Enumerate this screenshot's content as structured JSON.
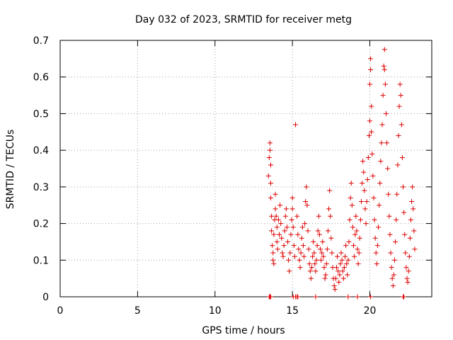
{
  "chart_data": {
    "type": "scatter",
    "title": "Day 032 of 2023, SRMTID for receiver metg",
    "xlabel": "GPS time / hours",
    "ylabel": "SRMTID / TECUs",
    "xlim": [
      0,
      24
    ],
    "ylim": [
      0,
      0.7
    ],
    "xticks": [
      0,
      5,
      10,
      15,
      20
    ],
    "yticks": [
      0,
      0.1,
      0.2,
      0.3,
      0.4,
      0.5,
      0.6,
      0.7
    ],
    "grid": true,
    "marker": "+",
    "color": "#dd0000",
    "series": [
      {
        "name": "SRMTID",
        "points": [
          [
            13.45,
            0.33
          ],
          [
            13.5,
            0.38
          ],
          [
            13.55,
            0.42
          ],
          [
            13.55,
            0.4
          ],
          [
            13.6,
            0.36
          ],
          [
            13.6,
            0.31
          ],
          [
            13.6,
            0.27
          ],
          [
            13.65,
            0.22
          ],
          [
            13.65,
            0.18
          ],
          [
            13.7,
            0.14
          ],
          [
            13.75,
            0.12
          ],
          [
            13.75,
            0.1
          ],
          [
            13.8,
            0.09
          ],
          [
            13.8,
            0.17
          ],
          [
            13.85,
            0.21
          ],
          [
            13.9,
            0.24
          ],
          [
            13.9,
            0.28
          ],
          [
            13.95,
            0.22
          ],
          [
            14.0,
            0.19
          ],
          [
            14.0,
            0.15
          ],
          [
            14.05,
            0.13
          ],
          [
            14.1,
            0.21
          ],
          [
            14.15,
            0.17
          ],
          [
            14.2,
            0.25
          ],
          [
            14.25,
            0.2
          ],
          [
            14.3,
            0.16
          ],
          [
            14.35,
            0.12
          ],
          [
            14.4,
            0.11
          ],
          [
            14.45,
            0.14
          ],
          [
            14.5,
            0.18
          ],
          [
            14.55,
            0.22
          ],
          [
            14.6,
            0.24
          ],
          [
            14.65,
            0.19
          ],
          [
            14.7,
            0.15
          ],
          [
            14.75,
            0.1
          ],
          [
            14.8,
            0.07
          ],
          [
            14.85,
            0.12
          ],
          [
            14.9,
            0.17
          ],
          [
            14.95,
            0.21
          ],
          [
            15.0,
            0.27
          ],
          [
            15.0,
            0.24
          ],
          [
            15.05,
            0.19
          ],
          [
            15.1,
            0.14
          ],
          [
            15.15,
            0.11
          ],
          [
            15.2,
            0.47
          ],
          [
            15.3,
            0.22
          ],
          [
            15.35,
            0.17
          ],
          [
            15.4,
            0.13
          ],
          [
            15.45,
            0.1
          ],
          [
            15.5,
            0.08
          ],
          [
            15.55,
            0.12
          ],
          [
            15.6,
            0.16
          ],
          [
            15.65,
            0.19
          ],
          [
            15.7,
            0.14
          ],
          [
            15.75,
            0.11
          ],
          [
            15.8,
            0.2
          ],
          [
            15.85,
            0.26
          ],
          [
            15.9,
            0.3
          ],
          [
            15.95,
            0.25
          ],
          [
            16.0,
            0.18
          ],
          [
            16.05,
            0.13
          ],
          [
            16.1,
            0.09
          ],
          [
            16.15,
            0.07
          ],
          [
            16.2,
            0.05
          ],
          [
            16.25,
            0.08
          ],
          [
            16.3,
            0.11
          ],
          [
            16.35,
            0.15
          ],
          [
            16.4,
            0.12
          ],
          [
            16.45,
            0.09
          ],
          [
            16.5,
            0.07
          ],
          [
            16.55,
            0.1
          ],
          [
            16.6,
            0.14
          ],
          [
            16.65,
            0.18
          ],
          [
            16.7,
            0.22
          ],
          [
            16.75,
            0.17
          ],
          [
            16.8,
            0.13
          ],
          [
            16.85,
            0.1
          ],
          [
            16.9,
            0.12
          ],
          [
            16.95,
            0.15
          ],
          [
            17.0,
            0.11
          ],
          [
            17.05,
            0.08
          ],
          [
            17.1,
            0.05
          ],
          [
            17.15,
            0.06
          ],
          [
            17.2,
            0.09
          ],
          [
            17.25,
            0.13
          ],
          [
            17.3,
            0.18
          ],
          [
            17.35,
            0.24
          ],
          [
            17.4,
            0.29
          ],
          [
            17.45,
            0.22
          ],
          [
            17.5,
            0.16
          ],
          [
            17.55,
            0.12
          ],
          [
            17.6,
            0.08
          ],
          [
            17.65,
            0.05
          ],
          [
            17.7,
            0.03
          ],
          [
            17.75,
            0.02
          ],
          [
            17.8,
            0.05
          ],
          [
            17.85,
            0.08
          ],
          [
            17.9,
            0.11
          ],
          [
            17.95,
            0.07
          ],
          [
            18.0,
            0.04
          ],
          [
            18.05,
            0.06
          ],
          [
            18.1,
            0.09
          ],
          [
            18.15,
            0.12
          ],
          [
            18.2,
            0.1
          ],
          [
            18.25,
            0.07
          ],
          [
            18.3,
            0.05
          ],
          [
            18.35,
            0.08
          ],
          [
            18.4,
            0.11
          ],
          [
            18.45,
            0.14
          ],
          [
            18.5,
            0.09
          ],
          [
            18.55,
            0.06
          ],
          [
            18.6,
            0.1
          ],
          [
            18.65,
            0.15
          ],
          [
            18.7,
            0.21
          ],
          [
            18.75,
            0.27
          ],
          [
            18.8,
            0.31
          ],
          [
            18.85,
            0.25
          ],
          [
            18.9,
            0.19
          ],
          [
            18.95,
            0.14
          ],
          [
            19.0,
            0.11
          ],
          [
            19.05,
            0.17
          ],
          [
            19.1,
            0.22
          ],
          [
            19.15,
            0.18
          ],
          [
            19.2,
            0.13
          ],
          [
            19.25,
            0.09
          ],
          [
            19.3,
            0.12
          ],
          [
            19.35,
            0.16
          ],
          [
            19.4,
            0.21
          ],
          [
            19.45,
            0.26
          ],
          [
            19.5,
            0.31
          ],
          [
            19.55,
            0.37
          ],
          [
            19.6,
            0.34
          ],
          [
            19.65,
            0.29
          ],
          [
            19.7,
            0.24
          ],
          [
            19.75,
            0.2
          ],
          [
            19.8,
            0.26
          ],
          [
            19.85,
            0.32
          ],
          [
            19.9,
            0.38
          ],
          [
            19.95,
            0.44
          ],
          [
            20.0,
            0.48
          ],
          [
            20.0,
            0.58
          ],
          [
            20.05,
            0.65
          ],
          [
            20.05,
            0.62
          ],
          [
            20.1,
            0.52
          ],
          [
            20.1,
            0.45
          ],
          [
            20.15,
            0.39
          ],
          [
            20.2,
            0.33
          ],
          [
            20.25,
            0.27
          ],
          [
            20.3,
            0.21
          ],
          [
            20.35,
            0.16
          ],
          [
            20.4,
            0.12
          ],
          [
            20.45,
            0.09
          ],
          [
            20.5,
            0.14
          ],
          [
            20.55,
            0.19
          ],
          [
            20.6,
            0.25
          ],
          [
            20.65,
            0.31
          ],
          [
            20.7,
            0.37
          ],
          [
            20.75,
            0.42
          ],
          [
            20.8,
            0.47
          ],
          [
            20.85,
            0.55
          ],
          [
            20.9,
            0.63
          ],
          [
            20.95,
            0.675
          ],
          [
            20.95,
            0.62
          ],
          [
            21.0,
            0.58
          ],
          [
            21.05,
            0.5
          ],
          [
            21.1,
            0.42
          ],
          [
            21.15,
            0.35
          ],
          [
            21.2,
            0.28
          ],
          [
            21.25,
            0.22
          ],
          [
            21.3,
            0.17
          ],
          [
            21.35,
            0.12
          ],
          [
            21.4,
            0.08
          ],
          [
            21.45,
            0.05
          ],
          [
            21.5,
            0.03
          ],
          [
            21.55,
            0.06
          ],
          [
            21.6,
            0.1
          ],
          [
            21.65,
            0.15
          ],
          [
            21.7,
            0.21
          ],
          [
            21.75,
            0.28
          ],
          [
            21.8,
            0.36
          ],
          [
            21.85,
            0.44
          ],
          [
            21.9,
            0.52
          ],
          [
            21.95,
            0.58
          ],
          [
            22.0,
            0.55
          ],
          [
            22.05,
            0.47
          ],
          [
            22.1,
            0.38
          ],
          [
            22.15,
            0.3
          ],
          [
            22.2,
            0.23
          ],
          [
            22.25,
            0.17
          ],
          [
            22.3,
            0.12
          ],
          [
            22.35,
            0.08
          ],
          [
            22.4,
            0.05
          ],
          [
            22.45,
            0.04
          ],
          [
            22.5,
            0.07
          ],
          [
            22.55,
            0.11
          ],
          [
            22.6,
            0.16
          ],
          [
            22.65,
            0.21
          ],
          [
            22.7,
            0.26
          ],
          [
            22.75,
            0.3
          ],
          [
            22.8,
            0.24
          ],
          [
            22.85,
            0.18
          ],
          [
            22.9,
            0.13
          ]
        ]
      }
    ],
    "zero_points_x": [
      13.5,
      13.55,
      13.6,
      15.05,
      15.2,
      15.3,
      15.35,
      16.5,
      18.6,
      19.2,
      20.05,
      22.15,
      22.2
    ]
  }
}
